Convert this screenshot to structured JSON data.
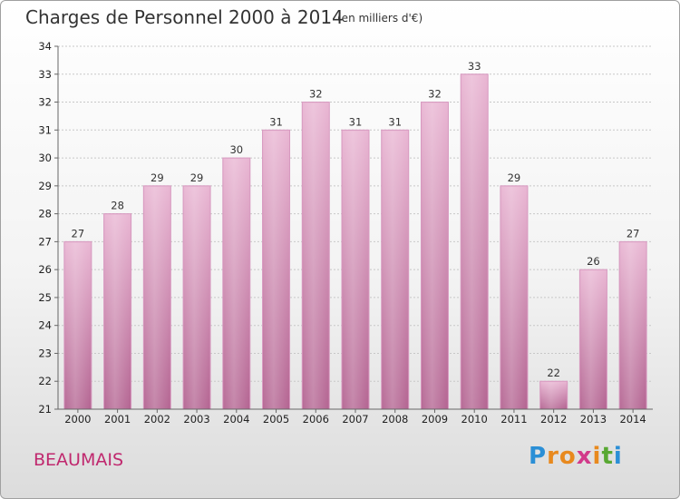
{
  "header": {
    "title": "Charges de Personnel 2000 à 2014",
    "unit": "(en milliers d'€)"
  },
  "footer": {
    "commune": "BEAUMAIS",
    "logo": {
      "letters": [
        "P",
        "r",
        "o",
        "x",
        "i",
        "t",
        "i"
      ],
      "colors": [
        "#2b8fd6",
        "#e8891e",
        "#e8891e",
        "#d23a8a",
        "#e8891e",
        "#58a832",
        "#2b8fd6"
      ]
    }
  },
  "colors": {
    "bar": "#c97aa6",
    "bar_light": "#e6b1d0",
    "grid": "#c8c8c8",
    "axis": "#666666",
    "commune": "#c0286e"
  },
  "chart_data": {
    "type": "bar",
    "title": "Charges de Personnel 2000 à 2014",
    "categories": [
      "2000",
      "2001",
      "2002",
      "2003",
      "2004",
      "2005",
      "2006",
      "2007",
      "2008",
      "2009",
      "2010",
      "2011",
      "2012",
      "2013",
      "2014"
    ],
    "values": [
      27,
      28,
      29,
      29,
      30,
      31,
      32,
      31,
      31,
      32,
      33,
      29,
      22,
      26,
      27
    ],
    "ylim": [
      21,
      34
    ],
    "yticks": [
      21,
      22,
      23,
      24,
      25,
      26,
      27,
      28,
      29,
      30,
      31,
      32,
      33,
      34
    ],
    "grid": true,
    "xlabel": "",
    "ylabel": ""
  }
}
